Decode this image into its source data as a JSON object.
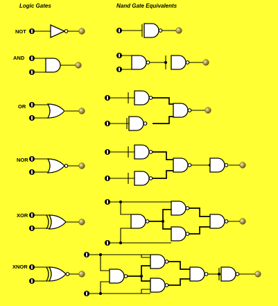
{
  "headers": {
    "left": "Logic Gates",
    "right": "Nand Gate Equivalents"
  },
  "rows": [
    {
      "label": "NOT"
    },
    {
      "label": "AND"
    },
    {
      "label": "OR"
    },
    {
      "label": "NOR"
    },
    {
      "label": "XOR"
    },
    {
      "label": "XNOR"
    }
  ],
  "colors": {
    "background": "#ffff33",
    "gate_fill": "#ffffff",
    "stroke": "#000000",
    "output_lamp": "#8a7b2e"
  }
}
